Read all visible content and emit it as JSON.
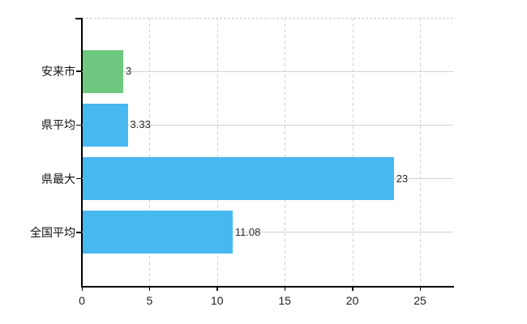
{
  "chart_data": {
    "type": "bar",
    "orientation": "horizontal",
    "title": "",
    "xlabel": "",
    "ylabel": "",
    "categories": [
      "安来市",
      "県平均",
      "県最大",
      "全国平均"
    ],
    "values": [
      3,
      3.33,
      23,
      11.08
    ],
    "value_labels": [
      "3",
      "3.33",
      "23",
      "11.08"
    ],
    "bar_colors": [
      "#6fc87f",
      "#47b8f0",
      "#47b8f0",
      "#47b8f0"
    ],
    "x_ticks": [
      0,
      5,
      10,
      15,
      20,
      25
    ],
    "x_tick_labels": [
      "0",
      "5",
      "10",
      "15",
      "20",
      "25"
    ],
    "xlim": [
      0,
      27.5
    ],
    "grid": true,
    "legend": false
  },
  "colors": {
    "background": "#ffffff",
    "axis": "#000000",
    "vertical_gridline": "#d2d2d2",
    "horizontal_gridline": "#ccd6cc",
    "top_border": "#cccccc",
    "category_label": "#111111",
    "value_label": "#2b2b2b",
    "tick_label": "#222222",
    "highlight_bar": "#6fc87f",
    "default_bar": "#47b8f0"
  }
}
